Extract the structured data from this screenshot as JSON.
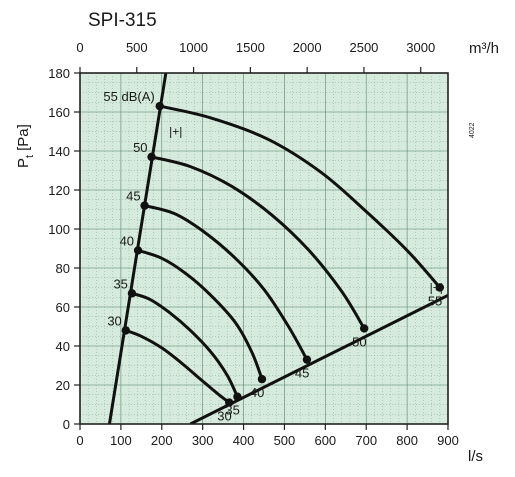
{
  "chart_data": {
    "type": "line",
    "title": "SPI-315",
    "xlabel_bottom": "l/s",
    "xlabel_top": "m³/h",
    "ylabel_main": "P",
    "ylabel_sub": "t",
    "ylabel_unit": "[Pa]",
    "side_code": "4022",
    "x_bottom_ticks": [
      0,
      100,
      200,
      300,
      400,
      500,
      600,
      700,
      800,
      900
    ],
    "x_bottom_tick_labels": [
      "0",
      "100",
      "200",
      "300",
      "400",
      "500",
      "600",
      "700",
      "800",
      "900"
    ],
    "x_top_ticks": [
      0,
      500,
      1000,
      1500,
      2000,
      2500,
      3000
    ],
    "x_top_tick_labels": [
      "0",
      "500",
      "1000",
      "1500",
      "2000",
      "2500",
      "3000"
    ],
    "y_ticks": [
      0,
      20,
      40,
      60,
      80,
      100,
      120,
      140,
      160,
      180
    ],
    "y_tick_labels": [
      "0",
      "20",
      "40",
      "60",
      "80",
      "100",
      "120",
      "140",
      "160",
      "180"
    ],
    "xlim": [
      0,
      900
    ],
    "ylim": [
      0,
      180
    ],
    "grid": true,
    "background_color": "#d6ebdd",
    "line_color": "#111111",
    "left_boundary": {
      "x": [
        72,
        210
      ],
      "y": [
        0,
        180
      ]
    },
    "right_boundary": {
      "x": [
        270,
        900
      ],
      "y": [
        0,
        66
      ]
    },
    "noise_curves": [
      {
        "label_left": "30",
        "label_right": "30",
        "x": [
          112,
          150,
          200,
          250,
          300,
          340,
          365
        ],
        "y": [
          48,
          45,
          39,
          31,
          22,
          15,
          11
        ]
      },
      {
        "label_left": "35",
        "label_right": "35",
        "x": [
          127,
          170,
          220,
          270,
          320,
          360,
          385
        ],
        "y": [
          67,
          64,
          57,
          48,
          37,
          25,
          14
        ]
      },
      {
        "label_left": "40",
        "label_right": "40",
        "x": [
          142,
          200,
          260,
          320,
          380,
          420,
          445
        ],
        "y": [
          89,
          85,
          77,
          66,
          52,
          37,
          23
        ]
      },
      {
        "label_left": "45",
        "label_right": "45",
        "x": [
          158,
          230,
          300,
          380,
          450,
          510,
          555
        ],
        "y": [
          112,
          108,
          99,
          85,
          69,
          50,
          33
        ]
      },
      {
        "label_left": "50",
        "label_right": "50",
        "x": [
          175,
          270,
          370,
          470,
          560,
          640,
          695
        ],
        "y": [
          137,
          132,
          122,
          107,
          89,
          68,
          49
        ]
      },
      {
        "label_left": "55 dB(A)",
        "label_right": "55",
        "x": [
          195,
          320,
          460,
          590,
          700,
          800,
          880
        ],
        "y": [
          163,
          157,
          146,
          129,
          109,
          89,
          70
        ]
      }
    ],
    "annotations": [
      {
        "text": "|+|",
        "x": 218,
        "y": 148
      },
      {
        "text": "|+|",
        "x": 855,
        "y": 68
      }
    ]
  }
}
